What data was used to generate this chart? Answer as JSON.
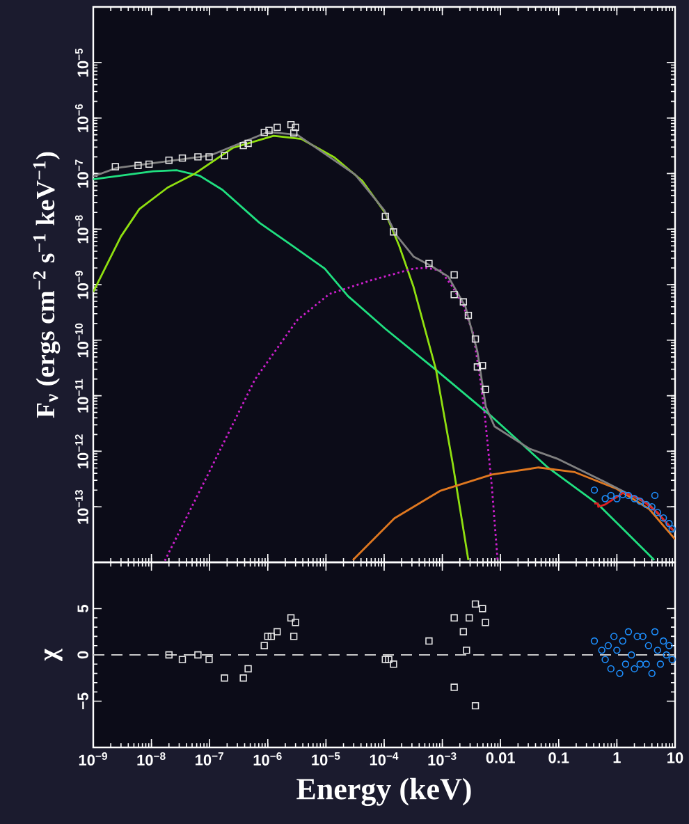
{
  "chart_data": [
    {
      "type": "line",
      "ylabel": "F$_{ν}$ (ergs cm$^{−2}$ s$^{−1}$ keV$^{−1}$)",
      "log": "xy",
      "xlim": [
        1e-09,
        10
      ],
      "ylim": [
        1e-14,
        0.0001
      ],
      "tick_labels": "y",
      "xticks": [
        {
          "value": 1e-09,
          "label": null
        },
        {
          "value": 1e-08,
          "label": null
        },
        {
          "value": 1e-07,
          "label": null
        },
        {
          "value": 1e-06,
          "label": null
        },
        {
          "value": 1e-05,
          "label": null
        },
        {
          "value": 0.0001,
          "label": null
        },
        {
          "value": 0.001,
          "label": null
        },
        {
          "value": 0.01,
          "label": null
        },
        {
          "value": 0.1,
          "label": null
        },
        {
          "value": 1,
          "label": null
        },
        {
          "value": 10,
          "label": null
        }
      ],
      "yticks": [
        {
          "value": 1e-13,
          "label": "10$^{−13}$"
        },
        {
          "value": 1e-12,
          "label": "10$^{−12}$"
        },
        {
          "value": 1e-11,
          "label": "10$^{−11}$"
        },
        {
          "value": 1e-10,
          "label": "10$^{−10}$"
        },
        {
          "value": 1e-09,
          "label": "10$^{−9}$"
        },
        {
          "value": 1e-08,
          "label": "10$^{−8}$"
        },
        {
          "value": 1e-07,
          "label": "10$^{−7}$"
        },
        {
          "value": 1e-06,
          "label": "10$^{−6}$"
        },
        {
          "value": 1e-05,
          "label": "10$^{−5}$"
        }
      ],
      "series": [
        {
          "type": "line",
          "color": "#20e080",
          "x": [
            1e-09,
            1.07e-08,
            2.7e-08,
            6.8e-08,
            1.66e-07,
            7.2e-07,
            2.6e-06,
            9.5e-06,
            2.4e-05,
            0.000105,
            0.00078,
            0.0071,
            0.065,
            0.48,
            4.4
          ],
          "values": [
            7.9e-08,
            1.1e-07,
            1.15e-07,
            9.1e-08,
            5.1e-08,
            1.3e-08,
            5.1e-09,
            1.95e-09,
            6.2e-10,
            1.6e-10,
            2.9e-11,
            4.2e-12,
            5.1e-13,
            1.1e-13,
            1.1e-14
          ]
        },
        {
          "type": "line",
          "color": "#90e010",
          "x": [
            1e-09,
            3e-09,
            6.2e-09,
            1.9e-08,
            5.6e-08,
            2.5e-07,
            1.26e-06,
            3.8e-06,
            1.4e-05,
            4.2e-05,
            0.000105,
            0.00018,
            0.00032,
            0.00078,
            0.0015,
            0.0028
          ],
          "values": [
            7.4e-10,
            7.4e-09,
            2.3e-08,
            5.6e-08,
            1e-07,
            2.9e-07,
            4.8e-07,
            4.2e-07,
            1.95e-07,
            7.4e-08,
            1.95e-08,
            5.1e-09,
            9.1e-10,
            2.9e-11,
            6.2e-13,
            1.1e-14
          ]
        },
        {
          "type": "line",
          "color": "#d020d0",
          "line_style": "dotted",
          "x": [
            1.7e-08,
            9.8e-08,
            6e-07,
            3.2e-06,
            1.15e-05,
            6e-05,
            0.00032,
            0.00055,
            0.00093,
            0.0015,
            0.0023,
            0.0034,
            0.0045,
            0.0054,
            0.0071,
            0.0089
          ],
          "values": [
            1.07e-14,
            4.2e-13,
            1.95e-11,
            2.3e-10,
            6.8e-10,
            1.2e-09,
            1.95e-09,
            2e-09,
            1.8e-09,
            9.1e-10,
            4.2e-10,
            1.3e-10,
            1.95e-11,
            4.2e-12,
            2.3e-13,
            1.1e-14
          ]
        },
        {
          "type": "line",
          "color": "#e07820",
          "x": [
            2.9e-05,
            0.00015,
            0.00093,
            0.0071,
            0.045,
            0.19,
            1.0,
            3.6,
            10
          ],
          "values": [
            1.1e-14,
            6.2e-14,
            1.95e-13,
            3.8e-13,
            5.1e-13,
            4.2e-13,
            2.1e-13,
            9.1e-14,
            2.6e-14
          ]
        },
        {
          "type": "line",
          "color": "#808080",
          "x": [
            1e-09,
            2.5e-09,
            1e-07,
            1e-06,
            3.2e-06,
            3.2e-05,
            0.0001,
            0.00016,
            0.00032,
            0.00063,
            0.00126,
            0.0025,
            0.004,
            0.0056,
            0.0079,
            0.032,
            0.093,
            0.58,
            3.6,
            10
          ],
          "values": [
            8.9e-08,
            1.26e-07,
            2.1e-07,
            5.6e-07,
            5e-07,
            9.5e-08,
            2.2e-08,
            7.9e-09,
            3.2e-09,
            2.2e-09,
            1.4e-09,
            4e-10,
            6.3e-11,
            6.3e-12,
            2.8e-12,
            1.1e-12,
            7.4e-13,
            2.9e-13,
            1.1e-13,
            3.5e-14
          ]
        },
        {
          "type": "scatter",
          "color": "#e6e6e6",
          "marker": "square",
          "x": [
            2.4e-09,
            5.9e-09,
            9.1e-09,
            2e-08,
            3.4e-08,
            6.3e-08,
            9.8e-08,
            1.8e-07,
            3.8e-07,
            4.6e-07,
            8.7e-07,
            1.05e-06,
            1.45e-06,
            2.5e-06,
            3e-06,
            2.8e-06,
            0.000105,
            0.000145,
            0.00059,
            0.0016,
            0.0016,
            0.0023,
            0.0028,
            0.0037,
            0.004,
            0.0049,
            0.0055
          ],
          "values": [
            1.33e-07,
            1.4e-07,
            1.48e-07,
            1.74e-07,
            1.9e-07,
            2e-07,
            2e-07,
            2.1e-07,
            3.2e-07,
            3.5e-07,
            5.5e-07,
            6e-07,
            6.8e-07,
            7.6e-07,
            6.8e-07,
            5.4e-07,
            1.7e-08,
            8.9e-09,
            2.4e-09,
            1.5e-09,
            6.6e-10,
            4.9e-10,
            2.8e-10,
            1.05e-10,
            3.3e-11,
            3.5e-11,
            1.3e-11
          ]
        },
        {
          "type": "scatter",
          "color": "#1e90ff",
          "marker": "circle",
          "x": [
            0.41,
            0.63,
            0.79,
            1.0,
            1.26,
            1.58,
            2.0,
            2.5,
            3.2,
            4.0,
            4.5,
            5.0,
            6.3,
            7.9,
            8.9
          ],
          "values": [
            2e-13,
            1.4e-13,
            1.6e-13,
            1.4e-13,
            1.66e-13,
            1.6e-13,
            1.4e-13,
            1.26e-13,
            1.1e-13,
            1e-13,
            1.6e-13,
            7.9e-14,
            6.3e-14,
            5e-14,
            4e-14
          ]
        },
        {
          "type": "line",
          "color": "#e02020",
          "x": [
            0.41,
            0.47,
            0.48,
            0.63,
            1.3,
            2.5,
            5.0,
            9.1
          ],
          "values": [
            1.15e-13,
            1.15e-13,
            1e-13,
            1.1e-13,
            1.8e-13,
            1.4e-13,
            7.9e-14,
            3.8e-14
          ]
        }
      ]
    },
    {
      "type": "scatter",
      "xlabel": "Energy (keV)",
      "ylabel": "χ",
      "log": "x",
      "xlim": [
        1e-09,
        10
      ],
      "ylim": [
        -10,
        10
      ],
      "xticks": [
        {
          "value": 1e-09,
          "label": "10$^{−9}$"
        },
        {
          "value": 1e-08,
          "label": "10$^{−8}$"
        },
        {
          "value": 1e-07,
          "label": "10$^{−7}$"
        },
        {
          "value": 1e-06,
          "label": "10$^{−6}$"
        },
        {
          "value": 1e-05,
          "label": "10$^{−5}$"
        },
        {
          "value": 0.0001,
          "label": "10$^{−4}$"
        },
        {
          "value": 0.001,
          "label": "10$^{−3}$"
        },
        {
          "value": 0.01,
          "label": "0.01"
        },
        {
          "value": 0.1,
          "label": "0.1"
        },
        {
          "value": 1,
          "label": "1"
        },
        {
          "value": 10,
          "label": "10"
        }
      ],
      "yticks": [
        {
          "value": -5,
          "label": "−5"
        },
        0,
        5
      ],
      "ref_lines": [
        {
          "axis": "y",
          "value": 0,
          "color": "#c8c8c8",
          "line_style": "dashed"
        }
      ],
      "series": [
        {
          "color": "#e6e6e6",
          "marker": "square",
          "x": [
            2e-08,
            3.4e-08,
            6.3e-08,
            9.8e-08,
            1.8e-07,
            3.8e-07,
            4.6e-07,
            8.7e-07,
            1e-06,
            1.15e-06,
            1.45e-06,
            2.5e-06,
            3e-06,
            2.8e-06,
            0.000105,
            0.00012,
            0.000145,
            0.00059,
            0.0016,
            0.0016,
            0.0023,
            0.0026,
            0.0029,
            0.0037,
            0.0049,
            0.0037,
            0.0055
          ],
          "values": [
            0,
            -0.5,
            0,
            -0.5,
            -2.5,
            -2.5,
            -1.5,
            1,
            2,
            2,
            2.5,
            4,
            3.5,
            2,
            -0.5,
            -0.5,
            -1,
            1.5,
            4,
            -3.5,
            2.5,
            0.5,
            4,
            5.5,
            5,
            -5.5,
            3.5
          ]
        },
        {
          "color": "#1e90ff",
          "marker": "circle",
          "x": [
            0.41,
            0.55,
            0.63,
            0.71,
            0.79,
            0.89,
            1.0,
            1.12,
            1.26,
            1.41,
            1.58,
            1.78,
            2.0,
            2.24,
            2.5,
            2.8,
            3.2,
            3.5,
            4.0,
            4.5,
            5.0,
            5.6,
            6.3,
            7.1,
            7.9,
            8.9
          ],
          "values": [
            1.5,
            0.5,
            -0.5,
            1,
            -1.5,
            2,
            0.5,
            -2,
            1.5,
            -1,
            2.5,
            0,
            -1.5,
            2,
            -1,
            2,
            -1,
            1,
            -2,
            2.5,
            0.5,
            -1,
            1.5,
            0,
            1,
            -0.5
          ]
        }
      ]
    }
  ]
}
